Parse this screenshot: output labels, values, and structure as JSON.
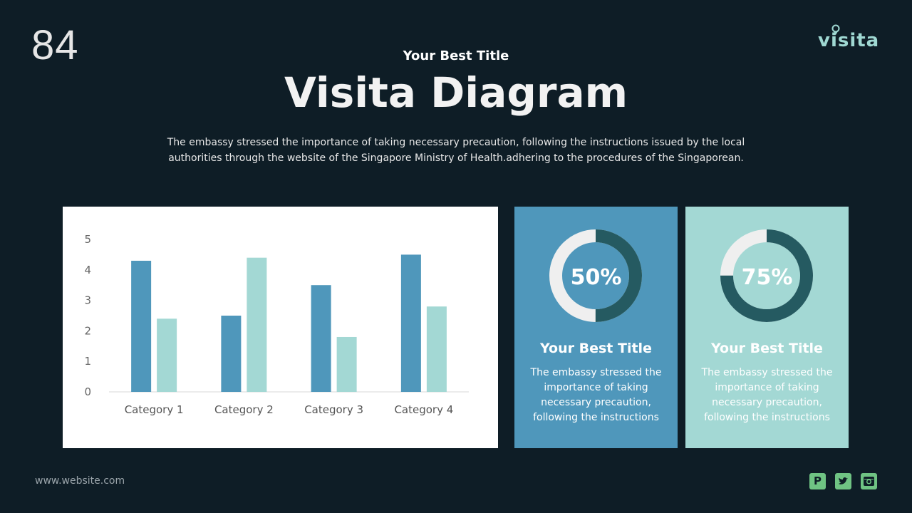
{
  "slide_number": "84",
  "logo": {
    "text": "visita",
    "icon": "map-pin-icon",
    "color": "#9fd8d2"
  },
  "header": {
    "subtitle": "Your Best Title",
    "title": "Visita Diagram",
    "description": "The embassy stressed the importance of taking necessary precaution, following the instructions issued by the local authorities through the website of the Singapore Ministry of Health.adhering to the procedures of the Singaporean."
  },
  "chart_data": {
    "type": "bar",
    "categories": [
      "Category 1",
      "Category 2",
      "Category 3",
      "Category 4"
    ],
    "series": [
      {
        "values": [
          4.3,
          2.5,
          3.5,
          4.5
        ],
        "color": "#4f97bb"
      },
      {
        "values": [
          2.4,
          4.4,
          1.8,
          2.8
        ],
        "color": "#a3d8d4"
      }
    ],
    "yticks": [
      "0",
      "1",
      "2",
      "3",
      "4",
      "5"
    ],
    "ylim": [
      0,
      5
    ],
    "grid": false,
    "legend": "none"
  },
  "cards": [
    {
      "percent_label": "50%",
      "value": 0.5,
      "title": "Your Best Title",
      "text": "The embassy stressed the importance of taking necessary precaution, following the instructions",
      "bg": "#4f97bb"
    },
    {
      "percent_label": "75%",
      "value": 0.75,
      "title": "Your Best Title",
      "text": "The embassy stressed the importance of taking necessary precaution, following the instructions",
      "bg": "#a3d8d4"
    }
  ],
  "footer": {
    "website": "www.website.com",
    "social": [
      "pinterest-icon",
      "twitter-icon",
      "instagram-icon"
    ],
    "social_color": "#6fc383"
  }
}
